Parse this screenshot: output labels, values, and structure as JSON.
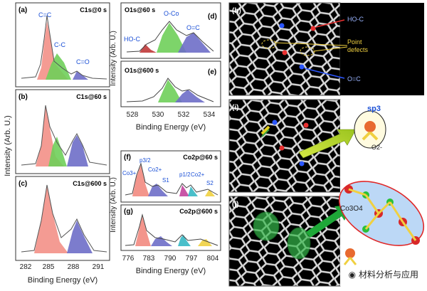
{
  "left": {
    "ylabel": "Intensity (Arb. U.)",
    "xlabel": "Binding Energy (eV)",
    "ticks": [
      "282",
      "285",
      "288",
      "291"
    ],
    "panels": [
      {
        "letter": "(a)",
        "label": "C1s@0 s",
        "peaks": [
          "C=C",
          "C-C",
          "C=O"
        ]
      },
      {
        "letter": "(b)",
        "label": "C1s@60 s"
      },
      {
        "letter": "(c)",
        "label": "C1s@600 s"
      }
    ]
  },
  "middle_top": {
    "ylabel": "Intensity (Arb. U.)",
    "xlabel": "Binding Energy (eV)",
    "ticks": [
      "528",
      "530",
      "532",
      "534"
    ],
    "panels": [
      {
        "letter": "(d)",
        "label": "O1s@60 s",
        "peaks": [
          "HO-C",
          "O-Co",
          "O=C"
        ]
      },
      {
        "letter": "(e)",
        "label": "O1s@600 s"
      }
    ]
  },
  "middle_bottom": {
    "ylabel": "Intensity (Arb. U.)",
    "xlabel": "Binding Energy (eV)",
    "ticks": [
      "776",
      "783",
      "790",
      "797",
      "804"
    ],
    "panels": [
      {
        "letter": "(f)",
        "label": "Co2p@60 s",
        "peaks": [
          "Co3+",
          "p3/2",
          "Co2+",
          "S1",
          "p1/2",
          "Co2+",
          "S2"
        ]
      },
      {
        "letter": "(g)",
        "label": "Co2p@600 s"
      }
    ]
  },
  "right": {
    "panels": [
      {
        "letter": "(h)",
        "annotations": [
          "HO-C",
          "Point defects",
          "O=C"
        ]
      },
      {
        "letter": "(i)",
        "annotations": [
          "sp3",
          "O2-"
        ]
      },
      {
        "letter": "(j)",
        "annotations": [
          "Co3O4"
        ]
      }
    ]
  },
  "watermark": "材料分析与应用"
}
